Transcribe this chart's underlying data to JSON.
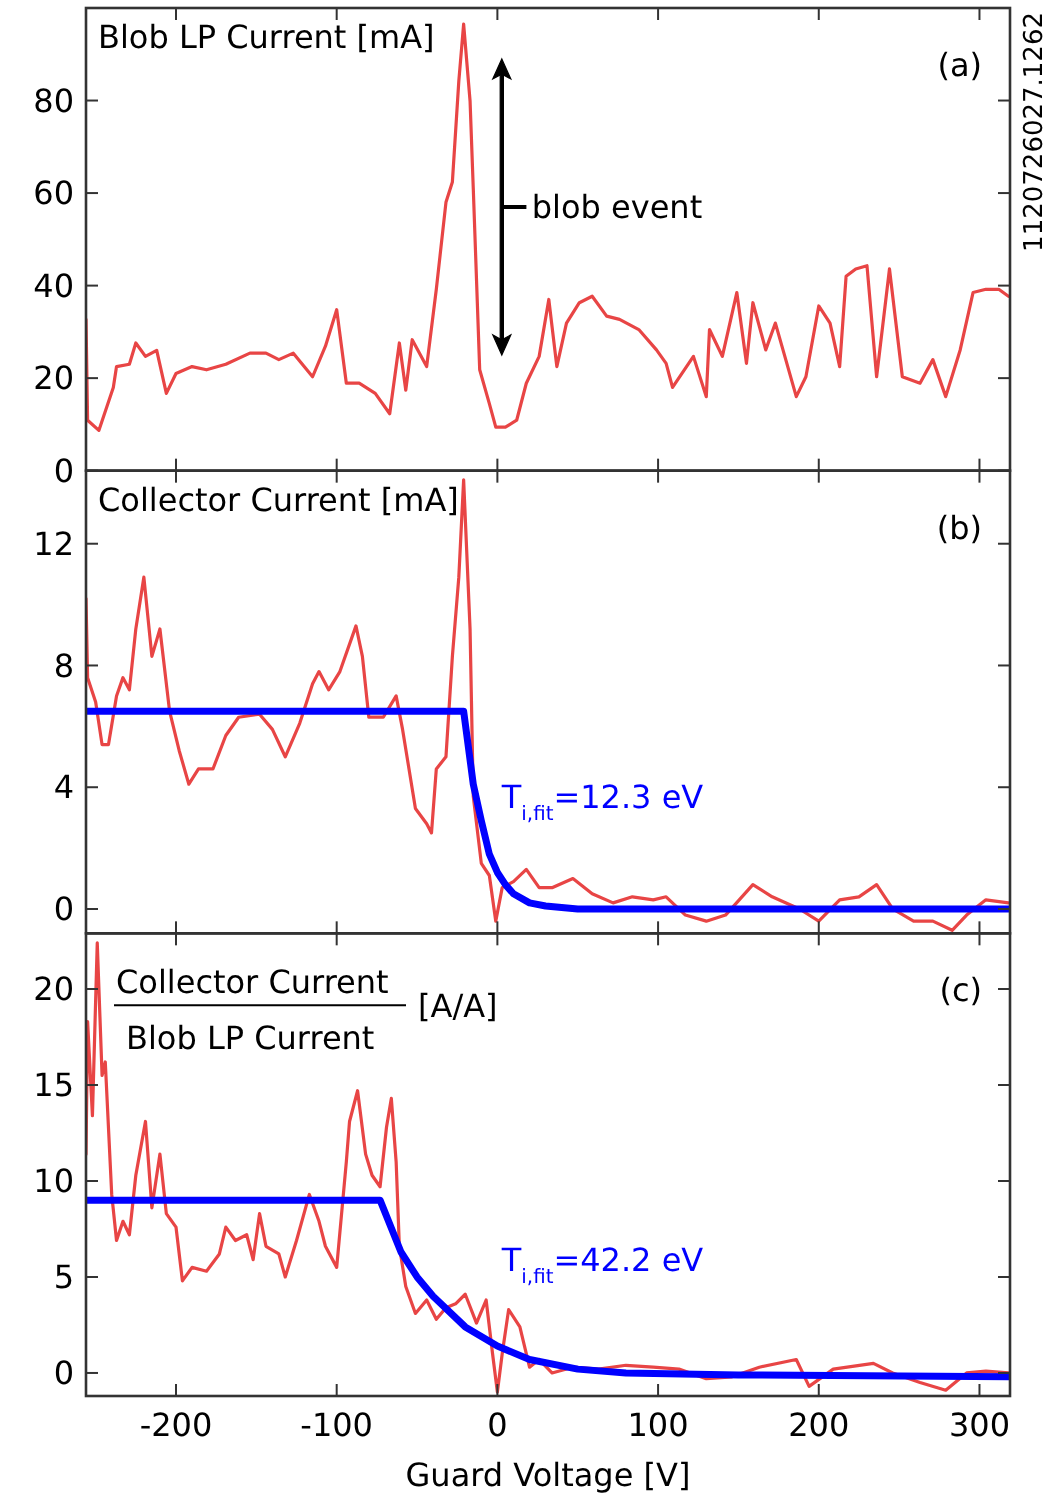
{
  "chart_data": [
    {
      "type": "line",
      "title": "Blob LP Current [mA]",
      "annotations": [
        "(a)",
        "1120726027.1262",
        "blob event"
      ],
      "xlim": [
        -256,
        319
      ],
      "xticks": [
        -200,
        -100,
        0,
        100,
        200,
        300
      ],
      "ylim": [
        0,
        100
      ],
      "yticks": [
        0,
        20,
        40,
        60,
        80
      ],
      "tick_labels": "y",
      "series": [
        {
          "color": "#e84545",
          "x": [
            -256,
            -255,
            -248,
            -239,
            -237,
            -229,
            -225,
            -219,
            -212,
            -206,
            -200,
            -190,
            -181,
            -169,
            -154,
            -144,
            -136,
            -127,
            -115,
            -107,
            -100,
            -94,
            -86,
            -76,
            -67,
            -61,
            -57,
            -53,
            -44,
            -38,
            -32,
            -28,
            -24,
            -21,
            -17,
            -15,
            -11,
            -5,
            -1,
            5,
            12,
            18,
            26,
            32,
            37,
            43,
            51,
            59,
            68,
            76,
            88,
            99,
            105,
            109,
            122,
            130,
            132,
            140,
            149,
            155,
            159,
            167,
            173,
            186,
            192,
            200,
            207,
            213,
            217,
            223,
            230,
            236,
            244,
            252,
            263,
            271,
            279,
            288,
            296,
            304,
            312,
            318
          ],
          "values": [
            32.7,
            10.9,
            8.7,
            18,
            22.5,
            23,
            27.6,
            24.7,
            26,
            16.7,
            21,
            22.5,
            21.8,
            23,
            25.4,
            25.4,
            24,
            25.4,
            20.3,
            26.9,
            34.8,
            18.9,
            18.9,
            16.7,
            12.3,
            27.6,
            17.4,
            28.3,
            22.5,
            39.2,
            58,
            62.4,
            84.2,
            96.5,
            79.9,
            61,
            21.8,
            14.5,
            9.4,
            9.4,
            10.9,
            18.9,
            24.7,
            37,
            22.5,
            31.9,
            36.3,
            37.7,
            33.4,
            32.7,
            30.5,
            26.1,
            23.2,
            18,
            24.7,
            16,
            30.5,
            24.7,
            38.5,
            23.2,
            36.3,
            26.1,
            31.9,
            16,
            20.3,
            35.6,
            31.9,
            22.5,
            42,
            43.6,
            44.3,
            20.3,
            43.6,
            20.3,
            18.9,
            24,
            16,
            26.1,
            38.5,
            39.2,
            39.2,
            37.7
          ]
        }
      ]
    },
    {
      "type": "line",
      "title": "Collector Current [mA]",
      "annotations": [
        "(b)",
        "T$_{i,fit}$=12.3 eV"
      ],
      "xlim": [
        -256,
        319
      ],
      "xticks": [
        -200,
        -100,
        0,
        100,
        200,
        300
      ],
      "ylim": [
        -0.8,
        14.4
      ],
      "yticks": [
        0,
        4,
        8,
        12
      ],
      "tick_labels": "y",
      "series": [
        {
          "color": "#e84545",
          "x": [
            -256,
            -255,
            -250,
            -246,
            -242,
            -237,
            -233,
            -229,
            -225,
            -220,
            -215,
            -210,
            -204,
            -198,
            -192,
            -186,
            -177,
            -169,
            -161,
            -148,
            -140,
            -132,
            -123,
            -115,
            -111,
            -105,
            -98,
            -88,
            -84,
            -80,
            -71,
            -63,
            -59,
            -51,
            -44,
            -41,
            -38,
            -32,
            -28,
            -24,
            -21,
            -17,
            -15,
            -10,
            -5,
            -1,
            3,
            10,
            18,
            26,
            34,
            47,
            59,
            72,
            84,
            97,
            105,
            117,
            130,
            142,
            159,
            171,
            188,
            200,
            213,
            225,
            236,
            246,
            259,
            271,
            283,
            292,
            304,
            318
          ],
          "values": [
            10.2,
            7.6,
            6.8,
            5.4,
            5.4,
            7,
            7.6,
            7.2,
            9.2,
            10.9,
            8.3,
            9.2,
            6.5,
            5.2,
            4.1,
            4.6,
            4.6,
            5.7,
            6.3,
            6.4,
            5.9,
            5,
            6.1,
            7.4,
            7.8,
            7.2,
            7.8,
            9.3,
            8.3,
            6.3,
            6.3,
            7,
            5.9,
            3.3,
            2.8,
            2.5,
            4.6,
            5,
            8.3,
            10.9,
            14.1,
            9.2,
            3.7,
            1.5,
            1.1,
            -0.4,
            0.7,
            0.9,
            1.3,
            0.7,
            0.7,
            1,
            0.5,
            0.2,
            0.4,
            0.3,
            0.4,
            -0.2,
            -0.4,
            -0.2,
            0.8,
            0.4,
            0,
            -0.4,
            0.3,
            0.4,
            0.8,
            0,
            -0.4,
            -0.4,
            -0.7,
            -0.2,
            0.3,
            0.2
          ]
        },
        {
          "color": "#0000ff",
          "x": [
            -256,
            -21,
            -15,
            -10,
            -5,
            0,
            5,
            10,
            20,
            30,
            50,
            318
          ],
          "values": [
            6.5,
            6.5,
            4.1,
            2.9,
            1.8,
            1.2,
            0.8,
            0.5,
            0.2,
            0.1,
            0,
            0
          ]
        }
      ]
    },
    {
      "type": "line",
      "title": "Collector Current",
      "subtitle": "Blob LP Current",
      "ylabel": "[A/A]",
      "xlabel": "Guard Voltage [V]",
      "annotations": [
        "(c)",
        "T$_{i,fit}$=42.2 eV"
      ],
      "xlim": [
        -256,
        319
      ],
      "xticks": [
        -200,
        -100,
        0,
        100,
        200,
        300
      ],
      "ylim": [
        -1.2,
        22.9
      ],
      "yticks": [
        0,
        5,
        10,
        15,
        20
      ],
      "series": [
        {
          "color": "#e84545",
          "x": [
            -256,
            -255,
            -252,
            -249,
            -246,
            -244,
            -240,
            -237,
            -233,
            -229,
            -225,
            -219,
            -215,
            -210,
            -206,
            -200,
            -196,
            -190,
            -181,
            -173,
            -169,
            -163,
            -156,
            -152,
            -148,
            -144,
            -136,
            -132,
            -125,
            -117,
            -111,
            -107,
            -100,
            -94,
            -92,
            -87,
            -82,
            -78,
            -73,
            -69,
            -66,
            -63,
            -61,
            -57,
            -51,
            -44,
            -38,
            -32,
            -26,
            -20,
            -13,
            -7,
            -3,
            0,
            3,
            7,
            14,
            20,
            26,
            34,
            47,
            63,
            80,
            97,
            113,
            130,
            146,
            163,
            186,
            194,
            209,
            234,
            246,
            263,
            279,
            292,
            304,
            318
          ],
          "values": [
            11.4,
            18.3,
            13.4,
            22.4,
            15.5,
            16.2,
            9.3,
            6.9,
            7.9,
            7.2,
            10.3,
            13.1,
            8.6,
            11.4,
            8.3,
            7.6,
            4.8,
            5.5,
            5.3,
            6.2,
            7.6,
            6.9,
            7.2,
            5.9,
            8.3,
            6.6,
            6.2,
            5,
            6.9,
            9.3,
            7.9,
            6.6,
            5.5,
            11,
            13.1,
            14.7,
            11.4,
            10.3,
            9.7,
            12.8,
            14.3,
            11,
            6.6,
            4.5,
            3.1,
            3.8,
            2.8,
            3.4,
            3.6,
            4.1,
            2.6,
            3.8,
            1,
            -1,
            1,
            3.3,
            2.4,
            0.3,
            0.7,
            0,
            0.3,
            0.2,
            0.4,
            0.3,
            0.2,
            -0.3,
            -0.2,
            0.3,
            0.7,
            -0.7,
            0.2,
            0.5,
            0,
            -0.5,
            -0.9,
            0,
            0.1,
            0
          ]
        },
        {
          "color": "#0000ff",
          "x": [
            -256,
            -73,
            -60,
            -50,
            -40,
            -20,
            0,
            20,
            50,
            80,
            150,
            318
          ],
          "values": [
            9,
            9,
            6.3,
            5,
            4,
            2.4,
            1.4,
            0.7,
            0.2,
            0,
            -0.1,
            -0.2
          ]
        }
      ]
    }
  ]
}
